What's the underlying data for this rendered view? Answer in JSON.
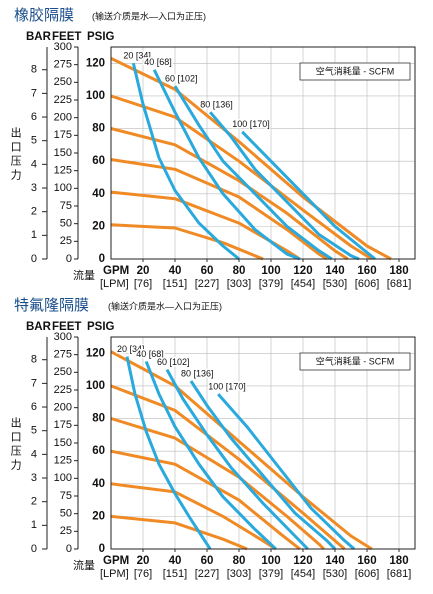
{
  "chart_data": [
    {
      "type": "line",
      "title": "橡胶隔膜",
      "subtitle": "(输送介质是水—入口为正压)",
      "y_label": "出口压力",
      "x_label": "流量",
      "x_unit": "GPM",
      "x2_unit": "[LPM]",
      "ylabel": "PSIG",
      "y2label": "FEET",
      "y3label": "BAR",
      "legend_title": "空气消耗量 - SCFM",
      "xlim": [
        0,
        190
      ],
      "xticks": [
        20,
        40,
        60,
        80,
        100,
        120,
        140,
        160,
        180
      ],
      "x2lim": [
        0,
        719.2
      ],
      "x2ticks": [
        {
          "value": 75.7,
          "label": "[76]"
        },
        {
          "value": 151.4,
          "label": "[151]"
        },
        {
          "value": 227.1,
          "label": "[227]"
        },
        {
          "value": 302.8,
          "label": "[303]"
        },
        {
          "value": 378.5,
          "label": "[379]"
        },
        {
          "value": 454.2,
          "label": "[454]"
        },
        {
          "value": 529.9,
          "label": "[530]"
        },
        {
          "value": 605.7,
          "label": "[606]"
        },
        {
          "value": 681.4,
          "label": "[681]"
        }
      ],
      "ylim": [
        0,
        130
      ],
      "yticks": [
        0,
        20,
        40,
        60,
        80,
        100,
        120
      ],
      "y2lim": [
        0,
        300
      ],
      "y2ticks": [
        0,
        25,
        50,
        75,
        100,
        125,
        150,
        175,
        200,
        225,
        250,
        275,
        300
      ],
      "y3lim": [
        0,
        8.96
      ],
      "y3ticks": [
        0,
        1,
        2,
        3,
        4,
        5,
        6,
        7,
        8
      ],
      "grid": true,
      "series": [
        {
          "color": "#f08a24",
          "x": [
            0,
            40,
            80,
            120,
            160,
            175
          ],
          "values": [
            123,
            104,
            72,
            38,
            8,
            0
          ]
        },
        {
          "color": "#f08a24",
          "x": [
            0,
            40,
            80,
            120,
            150,
            163
          ],
          "values": [
            100,
            87,
            60,
            30,
            8,
            0
          ]
        },
        {
          "color": "#f08a24",
          "x": [
            0,
            40,
            80,
            110,
            140,
            148
          ],
          "values": [
            80,
            70,
            48,
            28,
            5,
            0
          ]
        },
        {
          "color": "#f08a24",
          "x": [
            0,
            40,
            80,
            110,
            130,
            135
          ],
          "values": [
            61,
            55,
            38,
            18,
            3,
            0
          ]
        },
        {
          "color": "#f08a24",
          "x": [
            0,
            40,
            80,
            110,
            118
          ],
          "values": [
            41,
            37,
            22,
            5,
            0
          ]
        },
        {
          "color": "#f08a24",
          "x": [
            0,
            40,
            70,
            95
          ],
          "values": [
            21,
            19,
            10,
            0
          ]
        },
        {
          "color": "#29a9dc",
          "label": "20 [34]",
          "x": [
            14,
            20,
            30,
            40,
            55,
            70,
            80
          ],
          "values": [
            120,
            95,
            62,
            42,
            22,
            8,
            0
          ]
        },
        {
          "color": "#29a9dc",
          "label": "40 [68]",
          "x": [
            27,
            40,
            55,
            70,
            90,
            110,
            118
          ],
          "values": [
            116,
            90,
            62,
            40,
            18,
            3,
            0
          ]
        },
        {
          "color": "#29a9dc",
          "label": "60 [102]",
          "x": [
            40,
            55,
            70,
            90,
            110,
            130,
            138
          ],
          "values": [
            106,
            82,
            60,
            40,
            20,
            5,
            0
          ]
        },
        {
          "color": "#29a9dc",
          "label": "80 [136]",
          "x": [
            62,
            75,
            90,
            110,
            130,
            150,
            155
          ],
          "values": [
            90,
            75,
            55,
            35,
            15,
            2,
            0
          ]
        },
        {
          "color": "#29a9dc",
          "label": "100 [170]",
          "x": [
            82,
            100,
            120,
            140,
            160,
            165
          ],
          "values": [
            78,
            60,
            40,
            20,
            4,
            0
          ]
        }
      ]
    },
    {
      "type": "line",
      "title": "特氟隆隔膜",
      "subtitle": "(输送介质是水—入口为正压)",
      "y_label": "出口压力",
      "x_label": "流量",
      "x_unit": "GPM",
      "x2_unit": "[LPM]",
      "ylabel": "PSIG",
      "y2label": "FEET",
      "y3label": "BAR",
      "legend_title": "空气消耗量 - SCFM",
      "xlim": [
        0,
        190
      ],
      "xticks": [
        20,
        40,
        60,
        80,
        100,
        120,
        140,
        160,
        180
      ],
      "x2lim": [
        0,
        719.2
      ],
      "x2ticks": [
        {
          "value": 75.7,
          "label": "[76]"
        },
        {
          "value": 151.4,
          "label": "[151]"
        },
        {
          "value": 227.1,
          "label": "[227]"
        },
        {
          "value": 302.8,
          "label": "[303]"
        },
        {
          "value": 378.5,
          "label": "[379]"
        },
        {
          "value": 454.2,
          "label": "[454]"
        },
        {
          "value": 529.9,
          "label": "[530]"
        },
        {
          "value": 605.7,
          "label": "[606]"
        },
        {
          "value": 681.4,
          "label": "[681]"
        }
      ],
      "ylim": [
        0,
        130
      ],
      "yticks": [
        0,
        20,
        40,
        60,
        80,
        100,
        120
      ],
      "y2lim": [
        0,
        300
      ],
      "y2ticks": [
        0,
        25,
        50,
        75,
        100,
        125,
        150,
        175,
        200,
        225,
        250,
        275,
        300
      ],
      "y3lim": [
        0,
        8.96
      ],
      "y3ticks": [
        0,
        1,
        2,
        3,
        4,
        5,
        6,
        7,
        8
      ],
      "grid": true,
      "series": [
        {
          "color": "#f08a24",
          "x": [
            0,
            40,
            80,
            120,
            150,
            163
          ],
          "values": [
            121,
            100,
            66,
            32,
            8,
            0
          ]
        },
        {
          "color": "#f08a24",
          "x": [
            0,
            40,
            80,
            120,
            140,
            146
          ],
          "values": [
            100,
            85,
            55,
            22,
            5,
            0
          ]
        },
        {
          "color": "#f08a24",
          "x": [
            0,
            40,
            80,
            110,
            130,
            133
          ],
          "values": [
            80,
            68,
            44,
            20,
            3,
            0
          ]
        },
        {
          "color": "#f08a24",
          "x": [
            0,
            40,
            80,
            105,
            118
          ],
          "values": [
            60,
            52,
            30,
            10,
            0
          ]
        },
        {
          "color": "#f08a24",
          "x": [
            0,
            40,
            70,
            95,
            103
          ],
          "values": [
            40,
            35,
            20,
            5,
            0
          ]
        },
        {
          "color": "#f08a24",
          "x": [
            0,
            40,
            70,
            85
          ],
          "values": [
            20,
            16,
            6,
            0
          ]
        },
        {
          "color": "#29a9dc",
          "label": "20 [34]",
          "x": [
            10,
            15,
            22,
            30,
            40,
            50,
            62
          ],
          "values": [
            118,
            95,
            72,
            52,
            34,
            18,
            0
          ]
        },
        {
          "color": "#29a9dc",
          "label": "40 [68]",
          "x": [
            22,
            30,
            40,
            55,
            70,
            90,
            103
          ],
          "values": [
            115,
            95,
            75,
            52,
            32,
            12,
            0
          ]
        },
        {
          "color": "#29a9dc",
          "label": "60 [102]",
          "x": [
            35,
            45,
            60,
            75,
            95,
            115,
            123
          ],
          "values": [
            110,
            92,
            70,
            50,
            28,
            8,
            0
          ]
        },
        {
          "color": "#29a9dc",
          "label": "80 [136]",
          "x": [
            50,
            60,
            75,
            95,
            115,
            135,
            140
          ],
          "values": [
            103,
            88,
            68,
            45,
            22,
            5,
            0
          ]
        },
        {
          "color": "#29a9dc",
          "label": "100 [170]",
          "x": [
            67,
            85,
            105,
            125,
            145,
            152
          ],
          "values": [
            95,
            75,
            50,
            25,
            6,
            0
          ]
        }
      ]
    }
  ]
}
